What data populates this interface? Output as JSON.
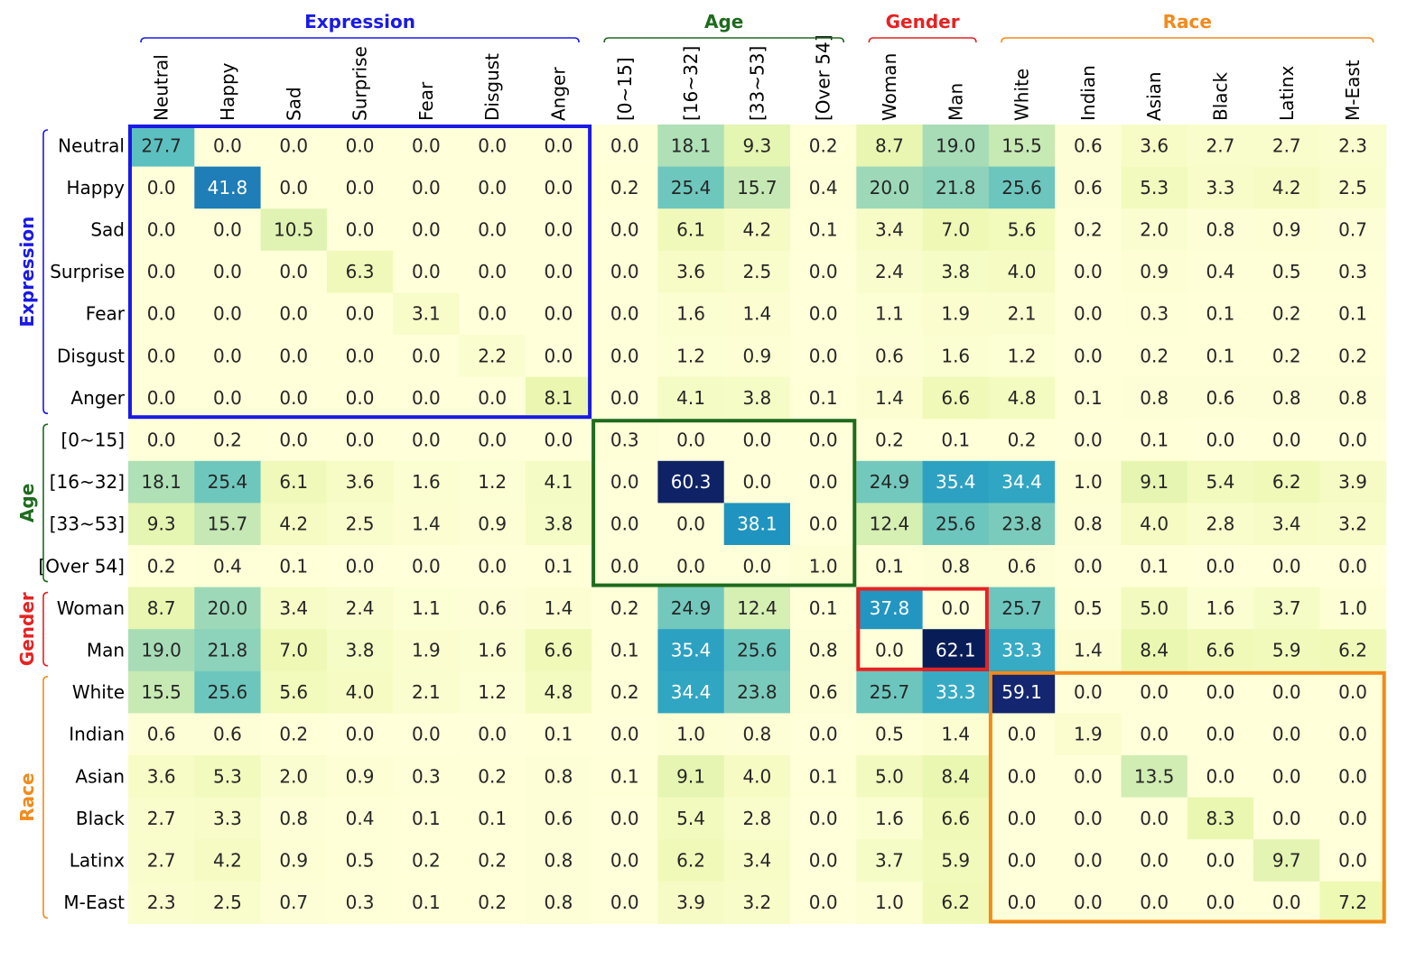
{
  "chart_data": {
    "type": "heatmap",
    "title": "",
    "colormap": "YlGnBu",
    "value_range": [
      0,
      62.1
    ],
    "groups": [
      {
        "name": "Expression",
        "color": "#1a1ae6",
        "labels": [
          "Neutral",
          "Happy",
          "Sad",
          "Surprise",
          "Fear",
          "Disgust",
          "Anger"
        ]
      },
      {
        "name": "Age",
        "color": "#1e6b1e",
        "labels": [
          "[0~15]",
          "[16~32]",
          "[33~53]",
          "[Over 54]"
        ]
      },
      {
        "name": "Gender",
        "color": "#e62222",
        "labels": [
          "Woman",
          "Man"
        ]
      },
      {
        "name": "Race",
        "color": "#f28a1c",
        "labels": [
          "White",
          "Indian",
          "Asian",
          "Black",
          "Latinx",
          "M-East"
        ]
      }
    ],
    "labels": [
      "Neutral",
      "Happy",
      "Sad",
      "Surprise",
      "Fear",
      "Disgust",
      "Anger",
      "[0~15]",
      "[16~32]",
      "[33~53]",
      "[Over 54]",
      "Woman",
      "Man",
      "White",
      "Indian",
      "Asian",
      "Black",
      "Latinx",
      "M-East"
    ],
    "values": [
      [
        27.7,
        0.0,
        0.0,
        0.0,
        0.0,
        0.0,
        0.0,
        0.0,
        18.1,
        9.3,
        0.2,
        8.7,
        19.0,
        15.5,
        0.6,
        3.6,
        2.7,
        2.7,
        2.3
      ],
      [
        0.0,
        41.8,
        0.0,
        0.0,
        0.0,
        0.0,
        0.0,
        0.2,
        25.4,
        15.7,
        0.4,
        20.0,
        21.8,
        25.6,
        0.6,
        5.3,
        3.3,
        4.2,
        2.5
      ],
      [
        0.0,
        0.0,
        10.5,
        0.0,
        0.0,
        0.0,
        0.0,
        0.0,
        6.1,
        4.2,
        0.1,
        3.4,
        7.0,
        5.6,
        0.2,
        2.0,
        0.8,
        0.9,
        0.7
      ],
      [
        0.0,
        0.0,
        0.0,
        6.3,
        0.0,
        0.0,
        0.0,
        0.0,
        3.6,
        2.5,
        0.0,
        2.4,
        3.8,
        4.0,
        0.0,
        0.9,
        0.4,
        0.5,
        0.3
      ],
      [
        0.0,
        0.0,
        0.0,
        0.0,
        3.1,
        0.0,
        0.0,
        0.0,
        1.6,
        1.4,
        0.0,
        1.1,
        1.9,
        2.1,
        0.0,
        0.3,
        0.1,
        0.2,
        0.1
      ],
      [
        0.0,
        0.0,
        0.0,
        0.0,
        0.0,
        2.2,
        0.0,
        0.0,
        1.2,
        0.9,
        0.0,
        0.6,
        1.6,
        1.2,
        0.0,
        0.2,
        0.1,
        0.2,
        0.2
      ],
      [
        0.0,
        0.0,
        0.0,
        0.0,
        0.0,
        0.0,
        8.1,
        0.0,
        4.1,
        3.8,
        0.1,
        1.4,
        6.6,
        4.8,
        0.1,
        0.8,
        0.6,
        0.8,
        0.8
      ],
      [
        0.0,
        0.2,
        0.0,
        0.0,
        0.0,
        0.0,
        0.0,
        0.3,
        0.0,
        0.0,
        0.0,
        0.2,
        0.1,
        0.2,
        0.0,
        0.1,
        0.0,
        0.0,
        0.0
      ],
      [
        18.1,
        25.4,
        6.1,
        3.6,
        1.6,
        1.2,
        4.1,
        0.0,
        60.3,
        0.0,
        0.0,
        24.9,
        35.4,
        34.4,
        1.0,
        9.1,
        5.4,
        6.2,
        3.9
      ],
      [
        9.3,
        15.7,
        4.2,
        2.5,
        1.4,
        0.9,
        3.8,
        0.0,
        0.0,
        38.1,
        0.0,
        12.4,
        25.6,
        23.8,
        0.8,
        4.0,
        2.8,
        3.4,
        3.2
      ],
      [
        0.2,
        0.4,
        0.1,
        0.0,
        0.0,
        0.0,
        0.1,
        0.0,
        0.0,
        0.0,
        1.0,
        0.1,
        0.8,
        0.6,
        0.0,
        0.1,
        0.0,
        0.0,
        0.0
      ],
      [
        8.7,
        20.0,
        3.4,
        2.4,
        1.1,
        0.6,
        1.4,
        0.2,
        24.9,
        12.4,
        0.1,
        37.8,
        0.0,
        25.7,
        0.5,
        5.0,
        1.6,
        3.7,
        1.0
      ],
      [
        19.0,
        21.8,
        7.0,
        3.8,
        1.9,
        1.6,
        6.6,
        0.1,
        35.4,
        25.6,
        0.8,
        0.0,
        62.1,
        33.3,
        1.4,
        8.4,
        6.6,
        5.9,
        6.2
      ],
      [
        15.5,
        25.6,
        5.6,
        4.0,
        2.1,
        1.2,
        4.8,
        0.2,
        34.4,
        23.8,
        0.6,
        25.7,
        33.3,
        59.1,
        0.0,
        0.0,
        0.0,
        0.0,
        0.0
      ],
      [
        0.6,
        0.6,
        0.2,
        0.0,
        0.0,
        0.0,
        0.1,
        0.0,
        1.0,
        0.8,
        0.0,
        0.5,
        1.4,
        0.0,
        1.9,
        0.0,
        0.0,
        0.0,
        0.0
      ],
      [
        3.6,
        5.3,
        2.0,
        0.9,
        0.3,
        0.2,
        0.8,
        0.1,
        9.1,
        4.0,
        0.1,
        5.0,
        8.4,
        0.0,
        0.0,
        13.5,
        0.0,
        0.0,
        0.0
      ],
      [
        2.7,
        3.3,
        0.8,
        0.4,
        0.1,
        0.1,
        0.6,
        0.0,
        5.4,
        2.8,
        0.0,
        1.6,
        6.6,
        0.0,
        0.0,
        0.0,
        8.3,
        0.0,
        0.0
      ],
      [
        2.7,
        4.2,
        0.9,
        0.5,
        0.2,
        0.2,
        0.8,
        0.0,
        6.2,
        3.4,
        0.0,
        3.7,
        5.9,
        0.0,
        0.0,
        0.0,
        0.0,
        9.7,
        0.0
      ],
      [
        2.3,
        2.5,
        0.7,
        0.3,
        0.1,
        0.2,
        0.8,
        0.0,
        3.9,
        3.2,
        0.0,
        1.0,
        6.2,
        0.0,
        0.0,
        0.0,
        0.0,
        0.0,
        7.2
      ]
    ],
    "grid": false,
    "highlight_boxes": [
      {
        "group": "Expression",
        "rows": [
          0,
          6
        ],
        "cols": [
          0,
          6
        ],
        "color": "#1a1ae6"
      },
      {
        "group": "Age",
        "rows": [
          7,
          10
        ],
        "cols": [
          7,
          10
        ],
        "color": "#1e6b1e"
      },
      {
        "group": "Gender",
        "rows": [
          11,
          12
        ],
        "cols": [
          11,
          12
        ],
        "color": "#e62222"
      },
      {
        "group": "Race",
        "rows": [
          13,
          18
        ],
        "cols": [
          13,
          18
        ],
        "color": "#f28a1c"
      }
    ]
  }
}
